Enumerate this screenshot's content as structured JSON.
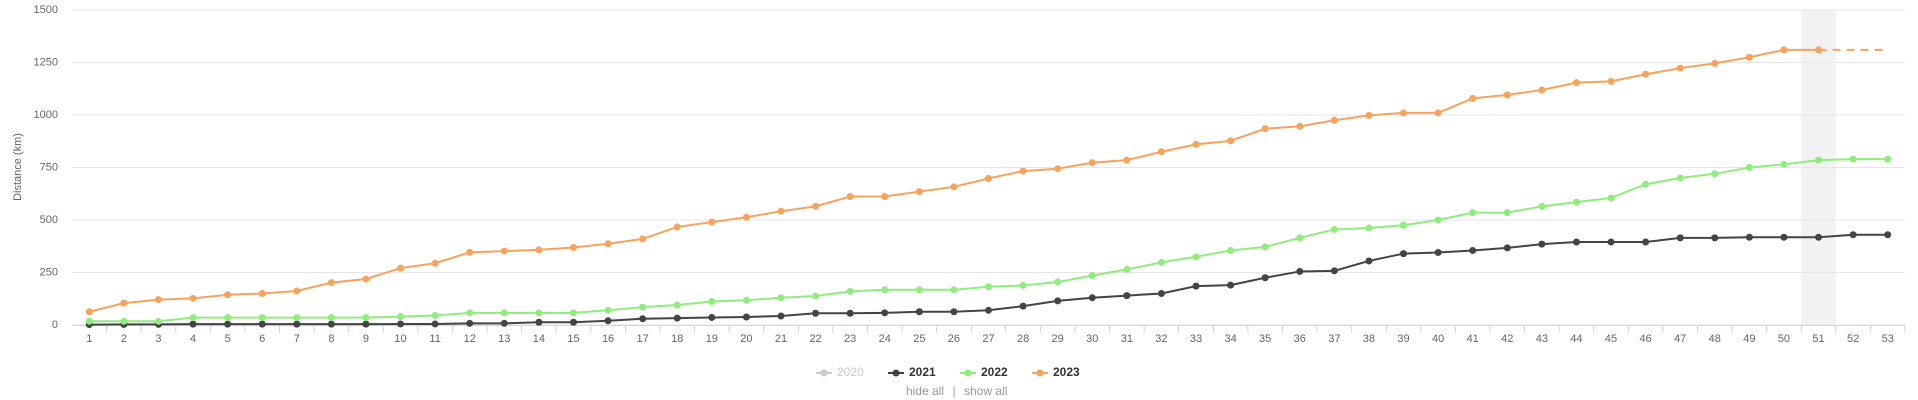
{
  "chart_data": {
    "type": "line",
    "y_label": "Distance (km)",
    "categories": [
      "1",
      "2",
      "3",
      "4",
      "5",
      "6",
      "7",
      "8",
      "9",
      "10",
      "11",
      "12",
      "13",
      "14",
      "15",
      "16",
      "17",
      "18",
      "19",
      "20",
      "21",
      "22",
      "23",
      "24",
      "25",
      "26",
      "27",
      "28",
      "29",
      "30",
      "31",
      "32",
      "33",
      "34",
      "35",
      "36",
      "37",
      "38",
      "39",
      "40",
      "41",
      "42",
      "43",
      "44",
      "45",
      "46",
      "47",
      "48",
      "49",
      "50",
      "51",
      "52",
      "53"
    ],
    "ylim": [
      0,
      1500
    ],
    "yticks": [
      0,
      250,
      500,
      750,
      1000,
      1250,
      1500
    ],
    "grid": true,
    "highlight_category": 51,
    "series": [
      {
        "name": "2020",
        "color": "#cccccc",
        "visible": false,
        "values": [
          null,
          null,
          null,
          null,
          null,
          null,
          null,
          null,
          null,
          null,
          null,
          null,
          null,
          null,
          null,
          null,
          null,
          null,
          null,
          null,
          null,
          null,
          null,
          null,
          null,
          null,
          null,
          null,
          null,
          null,
          null,
          null,
          null,
          null,
          null,
          null,
          null,
          null,
          null,
          null,
          null,
          null,
          null,
          null,
          null,
          null,
          null,
          null,
          null,
          null,
          null,
          null,
          null
        ]
      },
      {
        "name": "2021",
        "color": "#434348",
        "visible": true,
        "values": [
          2,
          3,
          3,
          4,
          4,
          4,
          4,
          4,
          4,
          5,
          5,
          8,
          8,
          13,
          13,
          20,
          30,
          33,
          36,
          38,
          43,
          56,
          56,
          58,
          63,
          63,
          70,
          90,
          115,
          130,
          140,
          150,
          185,
          190,
          225,
          255,
          258,
          305,
          340,
          345,
          355,
          367,
          385,
          395,
          395,
          395,
          415,
          415,
          418,
          418,
          418,
          430,
          430
        ]
      },
      {
        "name": "2022",
        "color": "#90ed7d",
        "visible": true,
        "values": [
          18,
          18,
          18,
          35,
          35,
          35,
          35,
          35,
          35,
          40,
          45,
          58,
          58,
          58,
          58,
          70,
          85,
          95,
          112,
          118,
          130,
          138,
          160,
          168,
          168,
          168,
          182,
          188,
          205,
          235,
          265,
          298,
          325,
          355,
          372,
          415,
          455,
          462,
          475,
          500,
          535,
          535,
          565,
          585,
          605,
          670,
          700,
          720,
          750,
          765,
          785,
          790,
          790
        ]
      },
      {
        "name": "2023",
        "color": "#f7a35c",
        "visible": true,
        "projection": true,
        "values": [
          63,
          104,
          121,
          127,
          144,
          150,
          162,
          202,
          219,
          271,
          294,
          346,
          352,
          358,
          369,
          387,
          410,
          467,
          490,
          513,
          542,
          565,
          612,
          612,
          635,
          658,
          698,
          733,
          744,
          773,
          785,
          825,
          860,
          877,
          935,
          946,
          975,
          998,
          1010,
          1010,
          1079,
          1096,
          1119,
          1154,
          1160,
          1194,
          1223,
          1246,
          1275,
          1310,
          1310,
          null,
          null
        ]
      }
    ],
    "legend_actions": [
      "hide all",
      "show all"
    ]
  }
}
